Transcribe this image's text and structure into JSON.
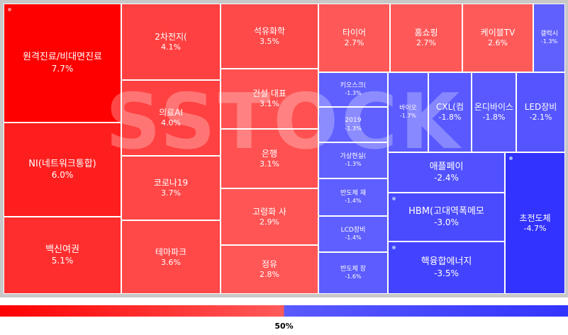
{
  "watermark": "SSTOCK",
  "scale_label": "50%",
  "colors": {
    "positive_high": "#ff0000",
    "positive_low": "#ff5a5a",
    "negative_low": "#5a5aff",
    "negative_high": "#3333ff",
    "dot": "#ff8080"
  },
  "chart_data": {
    "type": "treemap",
    "title": "",
    "unit": "%",
    "items": [
      {
        "name": "원격진료/비대면진료",
        "value": 7.7,
        "label": "7.7%",
        "dot": true
      },
      {
        "name": "NI(네트워크통합)",
        "value": 6.0,
        "label": "6.0%"
      },
      {
        "name": "백신여권",
        "value": 5.1,
        "label": "5.1%"
      },
      {
        "name": "2차전지(",
        "value": 4.1,
        "label": "4.1%"
      },
      {
        "name": "의료AI",
        "value": 4.0,
        "label": "4.0%"
      },
      {
        "name": "코로나19",
        "value": 3.7,
        "label": "3.7%"
      },
      {
        "name": "테마파크",
        "value": 3.6,
        "label": "3.6%"
      },
      {
        "name": "석유화학",
        "value": 3.5,
        "label": "3.5%"
      },
      {
        "name": "건설 대표",
        "value": 3.1,
        "label": "3.1%"
      },
      {
        "name": "은행",
        "value": 3.1,
        "label": "3.1%"
      },
      {
        "name": "고령화 사",
        "value": 2.9,
        "label": "2.9%"
      },
      {
        "name": "정유",
        "value": 2.8,
        "label": "2.8%"
      },
      {
        "name": "타이어",
        "value": 2.7,
        "label": "2.7%"
      },
      {
        "name": "홈쇼핑",
        "value": 2.7,
        "label": "2.7%"
      },
      {
        "name": "케이블TV",
        "value": 2.6,
        "label": "2.6%"
      },
      {
        "name": "갤럭시",
        "value": -1.3,
        "label": "-1.3%"
      },
      {
        "name": "키오스크(",
        "value": -1.3,
        "label": "-1.3%"
      },
      {
        "name": "2019",
        "value": -1.3,
        "label": "-1.3%"
      },
      {
        "name": "가상현실(",
        "value": -1.3,
        "label": "-1.3%"
      },
      {
        "name": "반도체 재",
        "value": -1.4,
        "label": "-1.4%"
      },
      {
        "name": "LCD장비",
        "value": -1.4,
        "label": "-1.4%"
      },
      {
        "name": "반도체 장",
        "value": -1.6,
        "label": "-1.6%"
      },
      {
        "name": "바이오",
        "value": -1.7,
        "label": "-1.7%"
      },
      {
        "name": "CXL(컴",
        "value": -1.8,
        "label": "-1.8%"
      },
      {
        "name": "온디바이스",
        "value": -1.8,
        "label": "-1.8%"
      },
      {
        "name": "LED장비",
        "value": -2.1,
        "label": "-2.1%"
      },
      {
        "name": "애플페이",
        "value": -2.4,
        "label": "-2.4%"
      },
      {
        "name": "HBM(고대역폭메모",
        "value": -3.0,
        "label": "-3.0%",
        "dot": true
      },
      {
        "name": "핵융합에너지",
        "value": -3.5,
        "label": "-3.5%",
        "dot": true
      },
      {
        "name": "초전도체",
        "value": -4.7,
        "label": "-4.7%",
        "dot": true
      }
    ]
  }
}
